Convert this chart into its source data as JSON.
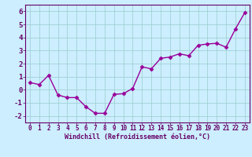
{
  "x_data": [
    0,
    1,
    2,
    3,
    4,
    5,
    6,
    7,
    8,
    9,
    10,
    11,
    12,
    13,
    14,
    15,
    16,
    17,
    18,
    19,
    20,
    21,
    22,
    23
  ],
  "y_data": [
    0.55,
    0.4,
    1.1,
    -0.4,
    -0.6,
    -0.6,
    -1.3,
    -1.8,
    -1.8,
    -0.35,
    -0.3,
    0.1,
    1.75,
    1.6,
    2.4,
    2.5,
    2.75,
    2.6,
    3.4,
    3.5,
    3.55,
    3.25,
    4.65,
    5.9
  ],
  "xlim": [
    -0.5,
    23.5
  ],
  "ylim": [
    -2.5,
    6.5
  ],
  "yticks": [
    -2,
    -1,
    0,
    1,
    2,
    3,
    4,
    5,
    6
  ],
  "xticks": [
    0,
    1,
    2,
    3,
    4,
    5,
    6,
    7,
    8,
    9,
    10,
    11,
    12,
    13,
    14,
    15,
    16,
    17,
    18,
    19,
    20,
    21,
    22,
    23
  ],
  "xlabel": "Windchill (Refroidissement éolien,°C)",
  "line_color": "#990099",
  "marker": "D",
  "marker_size": 2.5,
  "bg_color": "#cceeff",
  "grid_color": "#99cccc",
  "axis_color": "#660066",
  "tick_color": "#660066",
  "label_color": "#660066",
  "linewidth": 1.0,
  "tick_fontsize": 5.5,
  "label_fontsize": 6.0,
  "ytick_fontsize": 6.5
}
